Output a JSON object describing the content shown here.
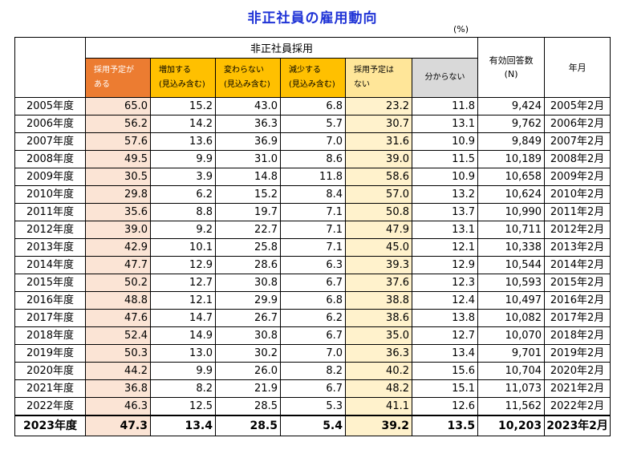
{
  "title": "非正社員の雇用動向",
  "unit": "(%)",
  "headers": {
    "group": "非正社員採用",
    "col1_line1": "採用予定が",
    "col1_line2": "ある",
    "col2_line1": "増加する",
    "col2_line2": "(見込み含む)",
    "col3_line1": "変わらない",
    "col3_line2": "(見込み含む)",
    "col4_line1": "減少する",
    "col4_line2": "(見込み含む)",
    "col5_line1": "採用予定は",
    "col5_line2": "ない",
    "col6": "分からない",
    "col7_line1": "有効回答数",
    "col7_line2": "(N)",
    "col8": "年月"
  },
  "colors": {
    "title": "#1f33d6",
    "hiring_planned_header": "#ec7c31",
    "increase_header": "#ffc000",
    "no_change_header": "#ffc000",
    "decrease_header": "#ffc000",
    "no_plan_header": "#ffe699",
    "unknown_header": "#d9d9d9",
    "hiring_planned_cells": "#fbe4d5",
    "no_plan_cells": "#fff2cc"
  },
  "rows": [
    [
      "2005年度",
      "65.0",
      "15.2",
      "43.0",
      "6.8",
      "23.2",
      "11.8",
      "9,424",
      "2005年2月"
    ],
    [
      "2006年度",
      "56.2",
      "14.2",
      "36.3",
      "5.7",
      "30.7",
      "13.1",
      "9,762",
      "2006年2月"
    ],
    [
      "2007年度",
      "57.6",
      "13.6",
      "36.9",
      "7.0",
      "31.6",
      "10.9",
      "9,849",
      "2007年2月"
    ],
    [
      "2008年度",
      "49.5",
      "9.9",
      "31.0",
      "8.6",
      "39.0",
      "11.5",
      "10,189",
      "2008年2月"
    ],
    [
      "2009年度",
      "30.5",
      "3.9",
      "14.8",
      "11.8",
      "58.6",
      "10.9",
      "10,658",
      "2009年2月"
    ],
    [
      "2010年度",
      "29.8",
      "6.2",
      "15.2",
      "8.4",
      "57.0",
      "13.2",
      "10,624",
      "2010年2月"
    ],
    [
      "2011年度",
      "35.6",
      "8.8",
      "19.7",
      "7.1",
      "50.8",
      "13.7",
      "10,990",
      "2011年2月"
    ],
    [
      "2012年度",
      "39.0",
      "9.2",
      "22.7",
      "7.1",
      "47.9",
      "13.1",
      "10,711",
      "2012年2月"
    ],
    [
      "2013年度",
      "42.9",
      "10.1",
      "25.8",
      "7.1",
      "45.0",
      "12.1",
      "10,338",
      "2013年2月"
    ],
    [
      "2014年度",
      "47.7",
      "12.9",
      "28.6",
      "6.3",
      "39.3",
      "12.9",
      "10,544",
      "2014年2月"
    ],
    [
      "2015年度",
      "50.2",
      "12.7",
      "30.8",
      "6.7",
      "37.6",
      "12.3",
      "10,593",
      "2015年2月"
    ],
    [
      "2016年度",
      "48.8",
      "12.1",
      "29.9",
      "6.8",
      "38.8",
      "12.4",
      "10,497",
      "2016年2月"
    ],
    [
      "2017年度",
      "47.6",
      "14.7",
      "26.7",
      "6.2",
      "38.6",
      "13.8",
      "10,082",
      "2017年2月"
    ],
    [
      "2018年度",
      "52.4",
      "14.9",
      "30.8",
      "6.7",
      "35.0",
      "12.7",
      "10,070",
      "2018年2月"
    ],
    [
      "2019年度",
      "50.3",
      "13.0",
      "30.2",
      "7.0",
      "36.3",
      "13.4",
      "9,701",
      "2019年2月"
    ],
    [
      "2020年度",
      "44.2",
      "9.9",
      "26.0",
      "8.2",
      "40.2",
      "15.6",
      "10,704",
      "2020年2月"
    ],
    [
      "2021年度",
      "36.8",
      "8.2",
      "21.9",
      "6.7",
      "48.2",
      "15.1",
      "11,073",
      "2021年2月"
    ],
    [
      "2022年度",
      "46.3",
      "12.5",
      "28.5",
      "5.3",
      "41.1",
      "12.6",
      "11,562",
      "2022年2月"
    ],
    [
      "2023年度",
      "47.3",
      "13.4",
      "28.5",
      "5.4",
      "39.2",
      "13.5",
      "10,203",
      "2023年2月"
    ]
  ]
}
